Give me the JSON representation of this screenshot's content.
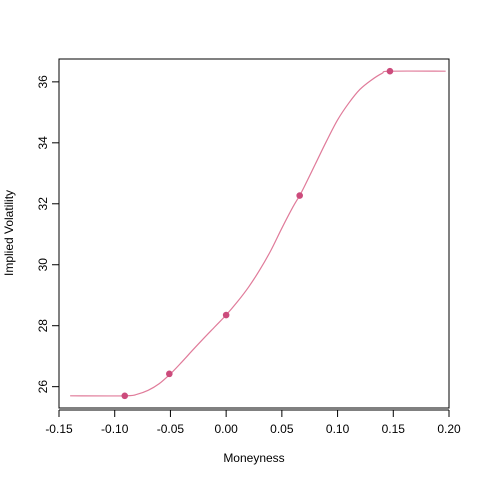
{
  "chart_data": {
    "type": "line",
    "title": "",
    "xlabel": "Moneyness",
    "ylabel": "Implied Volatility",
    "xlim": [
      -0.15,
      0.2
    ],
    "ylim": [
      25.3,
      36.75
    ],
    "x_ticks": [
      -0.15,
      -0.1,
      -0.05,
      0.0,
      0.05,
      0.1,
      0.15,
      0.2
    ],
    "x_tick_labels": [
      "-0.15",
      "-0.10",
      "-0.05",
      "0.00",
      "0.05",
      "0.10",
      "0.15",
      "0.20"
    ],
    "y_ticks": [
      26,
      28,
      30,
      32,
      34,
      36
    ],
    "y_tick_labels": [
      "26",
      "28",
      "30",
      "32",
      "34",
      "36"
    ],
    "grid": false,
    "legend": "none",
    "colors": {
      "line": "#e07b9a",
      "points": "#cc4b7c",
      "axis": "#000000"
    },
    "series": [
      {
        "kind": "curve",
        "x": [
          -0.14,
          -0.09,
          -0.08,
          -0.07,
          -0.06,
          -0.05,
          -0.04,
          -0.03,
          -0.02,
          -0.01,
          0.0,
          0.01,
          0.02,
          0.03,
          0.04,
          0.05,
          0.06,
          0.066,
          0.07,
          0.08,
          0.09,
          0.1,
          0.11,
          0.12,
          0.13,
          0.14,
          0.147,
          0.197
        ],
        "y": [
          25.7,
          25.7,
          25.75,
          25.88,
          26.1,
          26.42,
          26.8,
          27.2,
          27.59,
          27.97,
          28.35,
          28.78,
          29.26,
          29.82,
          30.46,
          31.2,
          31.9,
          32.27,
          32.55,
          33.3,
          34.05,
          34.75,
          35.3,
          35.75,
          36.05,
          36.28,
          36.35,
          36.35
        ]
      },
      {
        "kind": "points",
        "x": [
          -0.091,
          -0.051,
          0.0,
          0.066,
          0.147
        ],
        "y": [
          25.7,
          26.42,
          28.35,
          32.27,
          36.35
        ]
      }
    ]
  }
}
